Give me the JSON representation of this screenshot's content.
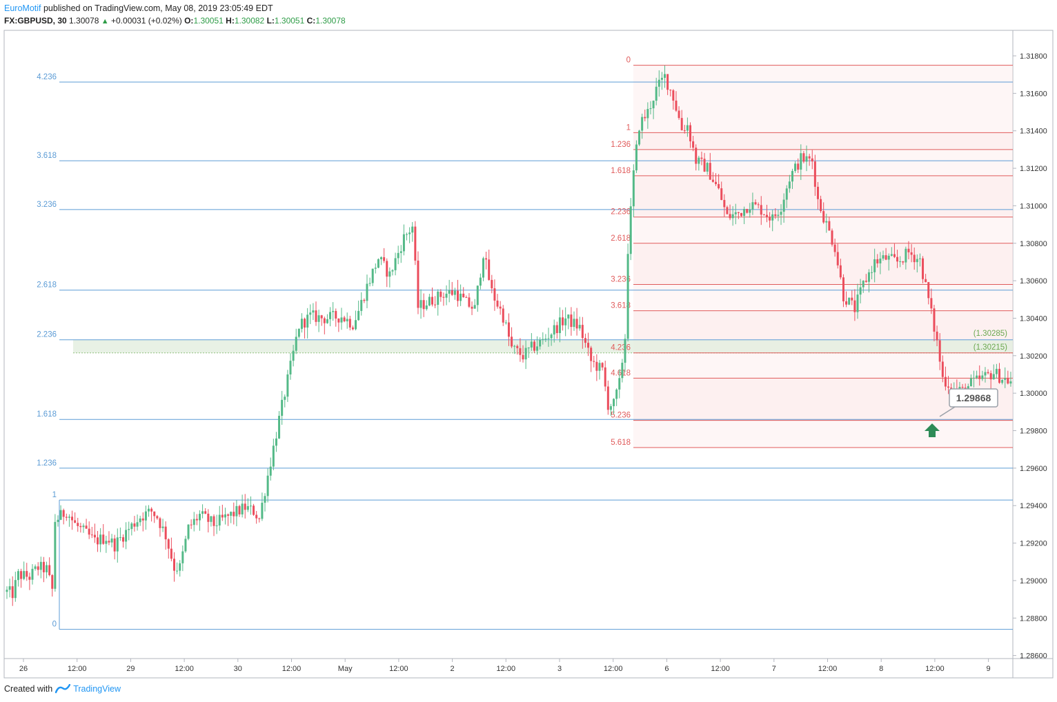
{
  "header": {
    "author": "EuroMotif",
    "published_text": "published on TradingView.com, May 08, 2019 23:05:49 EDT",
    "symbol": "FX:GBPUSD, 30",
    "last": "1.30078",
    "change": "+0.00031 (+0.02%)",
    "open_label": "O:",
    "open": "1.30051",
    "high_label": "H:",
    "high": "1.30082",
    "low_label": "L:",
    "low": "1.30051",
    "close_label": "C:",
    "close": "1.30078"
  },
  "footer": {
    "created_with": "Created with",
    "brand": "TradingView"
  },
  "colors": {
    "up": "#53b987",
    "down": "#eb4d5c",
    "fib_blue": "#5b9bd5",
    "fib_red": "#e05a5a",
    "zone_green": "#e4efe0",
    "zone_red": "#fbe6e6",
    "accent": "#2196f3"
  },
  "chart_data": {
    "type": "candlestick",
    "symbol": "FX:GBPUSD",
    "interval": "30",
    "y_axis": {
      "range": [
        1.286,
        1.319
      ],
      "ticks": [
        "1.31800",
        "1.31600",
        "1.31400",
        "1.31200",
        "1.31000",
        "1.30800",
        "1.30600",
        "1.30400",
        "1.30200",
        "1.30000",
        "1.29800",
        "1.29600",
        "1.29400",
        "1.29200",
        "1.29000",
        "1.28800",
        "1.28600"
      ],
      "side": "right"
    },
    "x_axis": {
      "ticks": [
        "26",
        "12:00",
        "29",
        "12:00",
        "30",
        "12:00",
        "May",
        "12:00",
        "2",
        "12:00",
        "3",
        "12:00",
        "6",
        "12:00",
        "7",
        "12:00",
        "8",
        "12:00",
        "9"
      ]
    },
    "fib_extension_blue": {
      "levels": [
        {
          "label": "4.236",
          "price": 1.3166
        },
        {
          "label": "3.618",
          "price": 1.3124
        },
        {
          "label": "3.236",
          "price": 1.3098
        },
        {
          "label": "2.618",
          "price": 1.3055
        },
        {
          "label": "2.236",
          "price": 1.30285
        },
        {
          "label": "1.618",
          "price": 1.2986
        },
        {
          "label": "1.236",
          "price": 1.296
        },
        {
          "label": "1",
          "price": 1.2943
        },
        {
          "label": "0",
          "price": 1.2874
        }
      ]
    },
    "fib_extension_red": {
      "levels": [
        {
          "label": "0",
          "price": 1.3175
        },
        {
          "label": "1",
          "price": 1.3139
        },
        {
          "label": "1.236",
          "price": 1.313
        },
        {
          "label": "1.618",
          "price": 1.3116
        },
        {
          "label": "2.236",
          "price": 1.3094
        },
        {
          "label": "2.618",
          "price": 1.308
        },
        {
          "label": "3.236",
          "price": 1.3058
        },
        {
          "label": "3.618",
          "price": 1.3044
        },
        {
          "label": "4.236",
          "price": 1.30215
        },
        {
          "label": "4.618",
          "price": 1.3008
        },
        {
          "label": "5.236",
          "price": 1.29855
        },
        {
          "label": "5.618",
          "price": 1.2971
        }
      ]
    },
    "annotations": {
      "zone_top_label": "(1.30285)",
      "zone_bottom_label": "(1.30215)",
      "callout": "1.29868",
      "arrow": "up"
    },
    "path": [
      [
        0,
        1.2894
      ],
      [
        2,
        1.2893
      ],
      [
        4,
        1.2903
      ],
      [
        8,
        1.2902
      ],
      [
        11,
        1.2907
      ],
      [
        14,
        1.2906
      ],
      [
        16,
        1.2895
      ],
      [
        17,
        1.2932
      ],
      [
        21,
        1.2937
      ],
      [
        24,
        1.293
      ],
      [
        31,
        1.2921
      ],
      [
        35,
        1.2923
      ],
      [
        38,
        1.2919
      ],
      [
        42,
        1.2926
      ],
      [
        47,
        1.2934
      ],
      [
        51,
        1.2937
      ],
      [
        53,
        1.2934
      ],
      [
        56,
        1.2924
      ],
      [
        59,
        1.2907
      ],
      [
        61,
        1.2907
      ],
      [
        64,
        1.2928
      ],
      [
        68,
        1.2935
      ],
      [
        73,
        1.293
      ],
      [
        79,
        1.2935
      ],
      [
        84,
        1.2939
      ],
      [
        87,
        1.2937
      ],
      [
        89,
        1.2933
      ],
      [
        92,
        1.2956
      ],
      [
        96,
        1.2986
      ],
      [
        100,
        1.3014
      ],
      [
        103,
        1.3036
      ],
      [
        107,
        1.3041
      ],
      [
        112,
        1.304
      ],
      [
        118,
        1.3041
      ],
      [
        122,
        1.3037
      ],
      [
        124,
        1.3044
      ],
      [
        127,
        1.3057
      ],
      [
        131,
        1.3072
      ],
      [
        135,
        1.3063
      ],
      [
        140,
        1.3083
      ],
      [
        143,
        1.3089
      ],
      [
        145,
        1.3046
      ],
      [
        149,
        1.3049
      ],
      [
        154,
        1.3053
      ],
      [
        158,
        1.3054
      ],
      [
        162,
        1.3048
      ],
      [
        165,
        1.3045
      ],
      [
        168,
        1.3075
      ],
      [
        171,
        1.3054
      ],
      [
        175,
        1.3041
      ],
      [
        178,
        1.3024
      ],
      [
        182,
        1.302
      ],
      [
        185,
        1.3024
      ],
      [
        189,
        1.3028
      ],
      [
        193,
        1.3034
      ],
      [
        197,
        1.304
      ],
      [
        202,
        1.3035
      ],
      [
        206,
        1.3017
      ],
      [
        210,
        1.3012
      ],
      [
        212,
        1.2994
      ],
      [
        214,
        1.2994
      ],
      [
        216,
        1.3005
      ],
      [
        218,
        1.303
      ],
      [
        219,
        1.3077
      ],
      [
        221,
        1.3117
      ],
      [
        223,
        1.3143
      ],
      [
        226,
        1.315
      ],
      [
        229,
        1.3162
      ],
      [
        232,
        1.3169
      ],
      [
        235,
        1.3158
      ],
      [
        238,
        1.3141
      ],
      [
        240,
        1.3143
      ],
      [
        243,
        1.3124
      ],
      [
        247,
        1.312
      ],
      [
        251,
        1.3108
      ],
      [
        254,
        1.3094
      ],
      [
        258,
        1.3096
      ],
      [
        262,
        1.3101
      ],
      [
        266,
        1.3098
      ],
      [
        270,
        1.3093
      ],
      [
        273,
        1.31
      ],
      [
        276,
        1.3115
      ],
      [
        280,
        1.3125
      ],
      [
        284,
        1.3124
      ],
      [
        286,
        1.3103
      ],
      [
        289,
        1.309
      ],
      [
        292,
        1.3078
      ],
      [
        295,
        1.3052
      ],
      [
        299,
        1.3045
      ],
      [
        302,
        1.3058
      ],
      [
        306,
        1.307
      ],
      [
        310,
        1.3072
      ],
      [
        314,
        1.307
      ],
      [
        318,
        1.3075
      ],
      [
        322,
        1.3071
      ],
      [
        325,
        1.305
      ],
      [
        328,
        1.3027
      ],
      [
        330,
        1.3008
      ],
      [
        334,
        1.3002
      ],
      [
        337,
        1.3001
      ],
      [
        340,
        1.3005
      ],
      [
        344,
        1.3008
      ],
      [
        348,
        1.3011
      ],
      [
        351,
        1.3008
      ],
      [
        354,
        1.3006
      ]
    ]
  }
}
